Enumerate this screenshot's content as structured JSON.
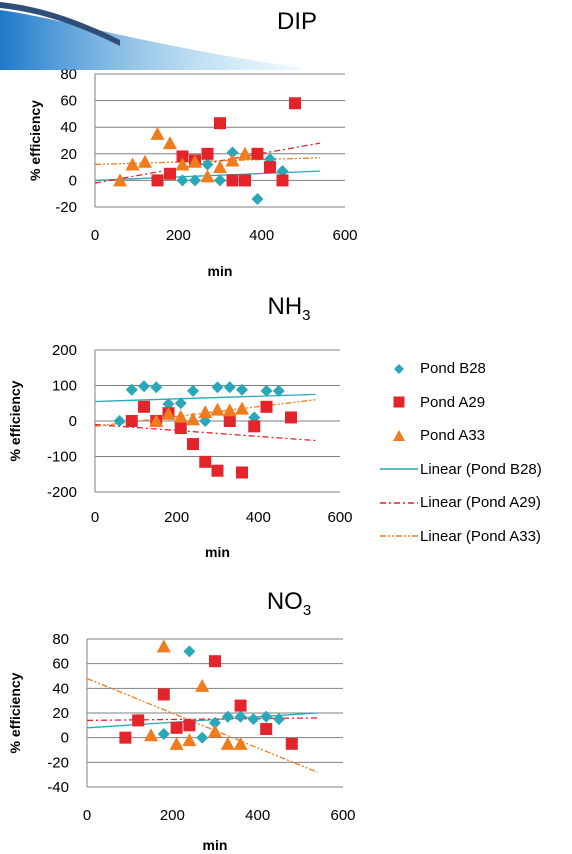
{
  "chart_data": [
    {
      "type": "scatter",
      "title": "DIP",
      "title_sub": "",
      "xlabel": "min",
      "ylabel": "% efficiency",
      "xlim": [
        0,
        600
      ],
      "ylim": [
        -20,
        80
      ],
      "xticks": [
        0,
        200,
        400,
        600
      ],
      "yticks": [
        -20,
        0,
        20,
        40,
        60,
        80
      ],
      "grid": "horizontal",
      "series": [
        {
          "name": "Pond B28",
          "marker": "diamond",
          "color": "#2aa7b8",
          "x": [
            210,
            240,
            270,
            300,
            330,
            390,
            420,
            450
          ],
          "y": [
            0,
            0,
            12,
            0,
            21,
            -14,
            16,
            7
          ]
        },
        {
          "name": "Pond A29",
          "marker": "square",
          "color": "#e3242b",
          "x": [
            150,
            180,
            210,
            240,
            270,
            300,
            330,
            360,
            390,
            420,
            450,
            480
          ],
          "y": [
            0,
            5,
            18,
            15,
            20,
            43,
            0,
            0,
            20,
            10,
            0,
            58
          ]
        },
        {
          "name": "Pond A33",
          "marker": "triangle",
          "color": "#f07c1e",
          "x": [
            60,
            90,
            120,
            150,
            180,
            210,
            240,
            270,
            300,
            330,
            360
          ],
          "y": [
            0,
            12,
            14,
            35,
            28,
            12,
            14,
            3,
            10,
            15,
            20
          ]
        }
      ],
      "trendlines": [
        {
          "name": "Linear (Pond B28)",
          "x": [
            0,
            540
          ],
          "y": [
            0,
            7
          ],
          "style": "solid",
          "color": "#2aa7b8"
        },
        {
          "name": "Linear (Pond A29)",
          "x": [
            0,
            540
          ],
          "y": [
            -2,
            28
          ],
          "style": "dashdot",
          "color": "#e3242b"
        },
        {
          "name": "Linear (Pond A33)",
          "x": [
            0,
            540
          ],
          "y": [
            12,
            17
          ],
          "style": "dashdotdot",
          "color": "#f07c1e"
        }
      ]
    },
    {
      "type": "scatter",
      "title": "NH",
      "title_sub": "3",
      "xlabel": "min",
      "ylabel": "% efficiency",
      "xlim": [
        0,
        600
      ],
      "ylim": [
        -200,
        200
      ],
      "xticks": [
        0,
        200,
        400,
        600
      ],
      "yticks": [
        -200,
        -100,
        0,
        100,
        200
      ],
      "grid": "horizontal",
      "series": [
        {
          "name": "Pond B28",
          "marker": "diamond",
          "color": "#2aa7b8",
          "x": [
            60,
            90,
            120,
            150,
            180,
            210,
            240,
            270,
            300,
            330,
            360,
            390,
            420,
            450
          ],
          "y": [
            0,
            88,
            98,
            95,
            48,
            50,
            85,
            0,
            95,
            95,
            88,
            10,
            85,
            85
          ]
        },
        {
          "name": "Pond A29",
          "marker": "square",
          "color": "#e3242b",
          "x": [
            90,
            120,
            150,
            180,
            210,
            240,
            270,
            300,
            330,
            360,
            390,
            420,
            480
          ],
          "y": [
            0,
            40,
            0,
            22,
            -20,
            -65,
            -115,
            -140,
            0,
            -145,
            -15,
            40,
            10
          ]
        },
        {
          "name": "Pond A33",
          "marker": "triangle",
          "color": "#f07c1e",
          "x": [
            150,
            180,
            210,
            240,
            270,
            300,
            330,
            360
          ],
          "y": [
            0,
            20,
            12,
            5,
            25,
            32,
            30,
            35
          ]
        }
      ],
      "trendlines": [
        {
          "name": "Linear (Pond B28)",
          "x": [
            0,
            540
          ],
          "y": [
            55,
            75
          ],
          "style": "solid",
          "color": "#2aa7b8"
        },
        {
          "name": "Linear (Pond A29)",
          "x": [
            0,
            540
          ],
          "y": [
            -10,
            -55
          ],
          "style": "dashdot",
          "color": "#e3242b"
        },
        {
          "name": "Linear (Pond A33)",
          "x": [
            0,
            540
          ],
          "y": [
            -15,
            60
          ],
          "style": "dashdotdot",
          "color": "#f07c1e"
        }
      ]
    },
    {
      "type": "scatter",
      "title": "NO",
      "title_sub": "3",
      "xlabel": "min",
      "ylabel": "% efficiency",
      "xlim": [
        0,
        600
      ],
      "ylim": [
        -40,
        80
      ],
      "xticks": [
        0,
        200,
        400,
        600
      ],
      "yticks": [
        -40,
        -20,
        0,
        20,
        40,
        60,
        80
      ],
      "grid": "horizontal",
      "series": [
        {
          "name": "Pond B28",
          "marker": "diamond",
          "color": "#2aa7b8",
          "x": [
            180,
            240,
            270,
            300,
            330,
            360,
            390,
            420,
            450
          ],
          "y": [
            3,
            70,
            0,
            12,
            17,
            17,
            15,
            17,
            15
          ]
        },
        {
          "name": "Pond A29",
          "marker": "square",
          "color": "#e3242b",
          "x": [
            90,
            120,
            180,
            210,
            240,
            300,
            360,
            420,
            480
          ],
          "y": [
            0,
            14,
            35,
            8,
            10,
            62,
            26,
            7,
            -5
          ]
        },
        {
          "name": "Pond A33",
          "marker": "triangle",
          "color": "#f07c1e",
          "x": [
            150,
            180,
            210,
            240,
            270,
            300,
            330,
            360
          ],
          "y": [
            2,
            74,
            -5,
            -2,
            42,
            5,
            -5,
            -5
          ]
        }
      ],
      "trendlines": [
        {
          "name": "Linear (Pond B28)",
          "x": [
            0,
            540
          ],
          "y": [
            8,
            20
          ],
          "style": "solid",
          "color": "#2aa7b8"
        },
        {
          "name": "Linear (Pond A29)",
          "x": [
            0,
            540
          ],
          "y": [
            14,
            16
          ],
          "style": "dashdot",
          "color": "#e3242b"
        },
        {
          "name": "Linear (Pond A33)",
          "x": [
            0,
            540
          ],
          "y": [
            48,
            -28
          ],
          "style": "dashdotdot",
          "color": "#f07c1e"
        }
      ]
    }
  ],
  "legend": {
    "placement": "right",
    "items": [
      {
        "label": "Pond B28",
        "kind": "diamond",
        "color": "#2aa7b8"
      },
      {
        "label": "Pond A29",
        "kind": "square",
        "color": "#e3242b"
      },
      {
        "label": "Pond A33",
        "kind": "triangle",
        "color": "#f07c1e"
      },
      {
        "label": "Linear (Pond B28)",
        "kind": "solid",
        "color": "#2aa7b8"
      },
      {
        "label": "Linear (Pond A29)",
        "kind": "dashdot",
        "color": "#e3242b"
      },
      {
        "label": "Linear (Pond A33)",
        "kind": "dashdotdot",
        "color": "#f07c1e"
      }
    ]
  },
  "decoration": {
    "corner_icon": "slide-corner-swoosh",
    "colors": [
      "#1e78c8",
      "#7cc6ef"
    ]
  }
}
